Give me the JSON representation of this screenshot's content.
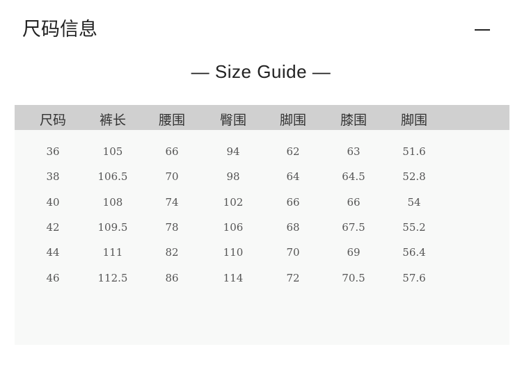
{
  "title": "尺码信息",
  "guide_title": "— Size Guide —",
  "headers": [
    "尺码",
    "裤长",
    "腰围",
    "臀围",
    "脚围",
    "膝围",
    "脚围"
  ],
  "rows": [
    [
      "36",
      "105",
      "66",
      "94",
      "62",
      "63",
      "51.6"
    ],
    [
      "38",
      "106.5",
      "70",
      "98",
      "64",
      "64.5",
      "52.8"
    ],
    [
      "40",
      "108",
      "74",
      "102",
      "66",
      "66",
      "54"
    ],
    [
      "42",
      "109.5",
      "78",
      "106",
      "68",
      "67.5",
      "55.2"
    ],
    [
      "44",
      "111",
      "82",
      "110",
      "70",
      "69",
      "56.4"
    ],
    [
      "46",
      "112.5",
      "86",
      "114",
      "72",
      "70.5",
      "57.6"
    ]
  ]
}
